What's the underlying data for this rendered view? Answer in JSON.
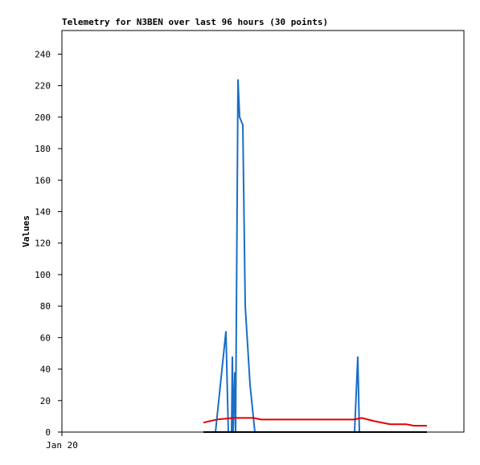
{
  "chart_data": {
    "type": "line",
    "title": "Telemetry for N3BEN over last 96 hours (30 points)",
    "y_label": "Values",
    "xlim": [
      0,
      100
    ],
    "xticks": [
      {
        "value": 0,
        "label": "Jan 20"
      }
    ],
    "ylim": [
      0,
      255
    ],
    "yticks": [
      0,
      20,
      40,
      60,
      80,
      100,
      120,
      140,
      160,
      180,
      200,
      220,
      240
    ],
    "series": [
      {
        "color": "#1a6ec4",
        "x": [
          38.2,
          40.8,
          41.4,
          42.2,
          42.4,
          42.6,
          43.0,
          43.2,
          43.8,
          44.2,
          45.0,
          45.6,
          46.8,
          48.0,
          72.8,
          73.6,
          74.0
        ],
        "values": [
          0,
          64,
          0,
          0,
          48,
          0,
          38,
          0,
          224,
          200,
          195,
          80,
          30,
          0,
          0,
          48,
          0
        ]
      },
      {
        "color": "#e00000",
        "x": [
          35.2,
          38.6,
          42.6,
          47.6,
          49.6,
          72.6,
          74.6,
          77.6,
          81.6,
          85.6,
          87.6,
          90.8
        ],
        "values": [
          6,
          8,
          9,
          9,
          8,
          8,
          9,
          7,
          5,
          5,
          4,
          4
        ]
      },
      {
        "color": "#000000",
        "x": [
          35.2,
          90.8
        ],
        "values": [
          0,
          0
        ]
      }
    ]
  }
}
